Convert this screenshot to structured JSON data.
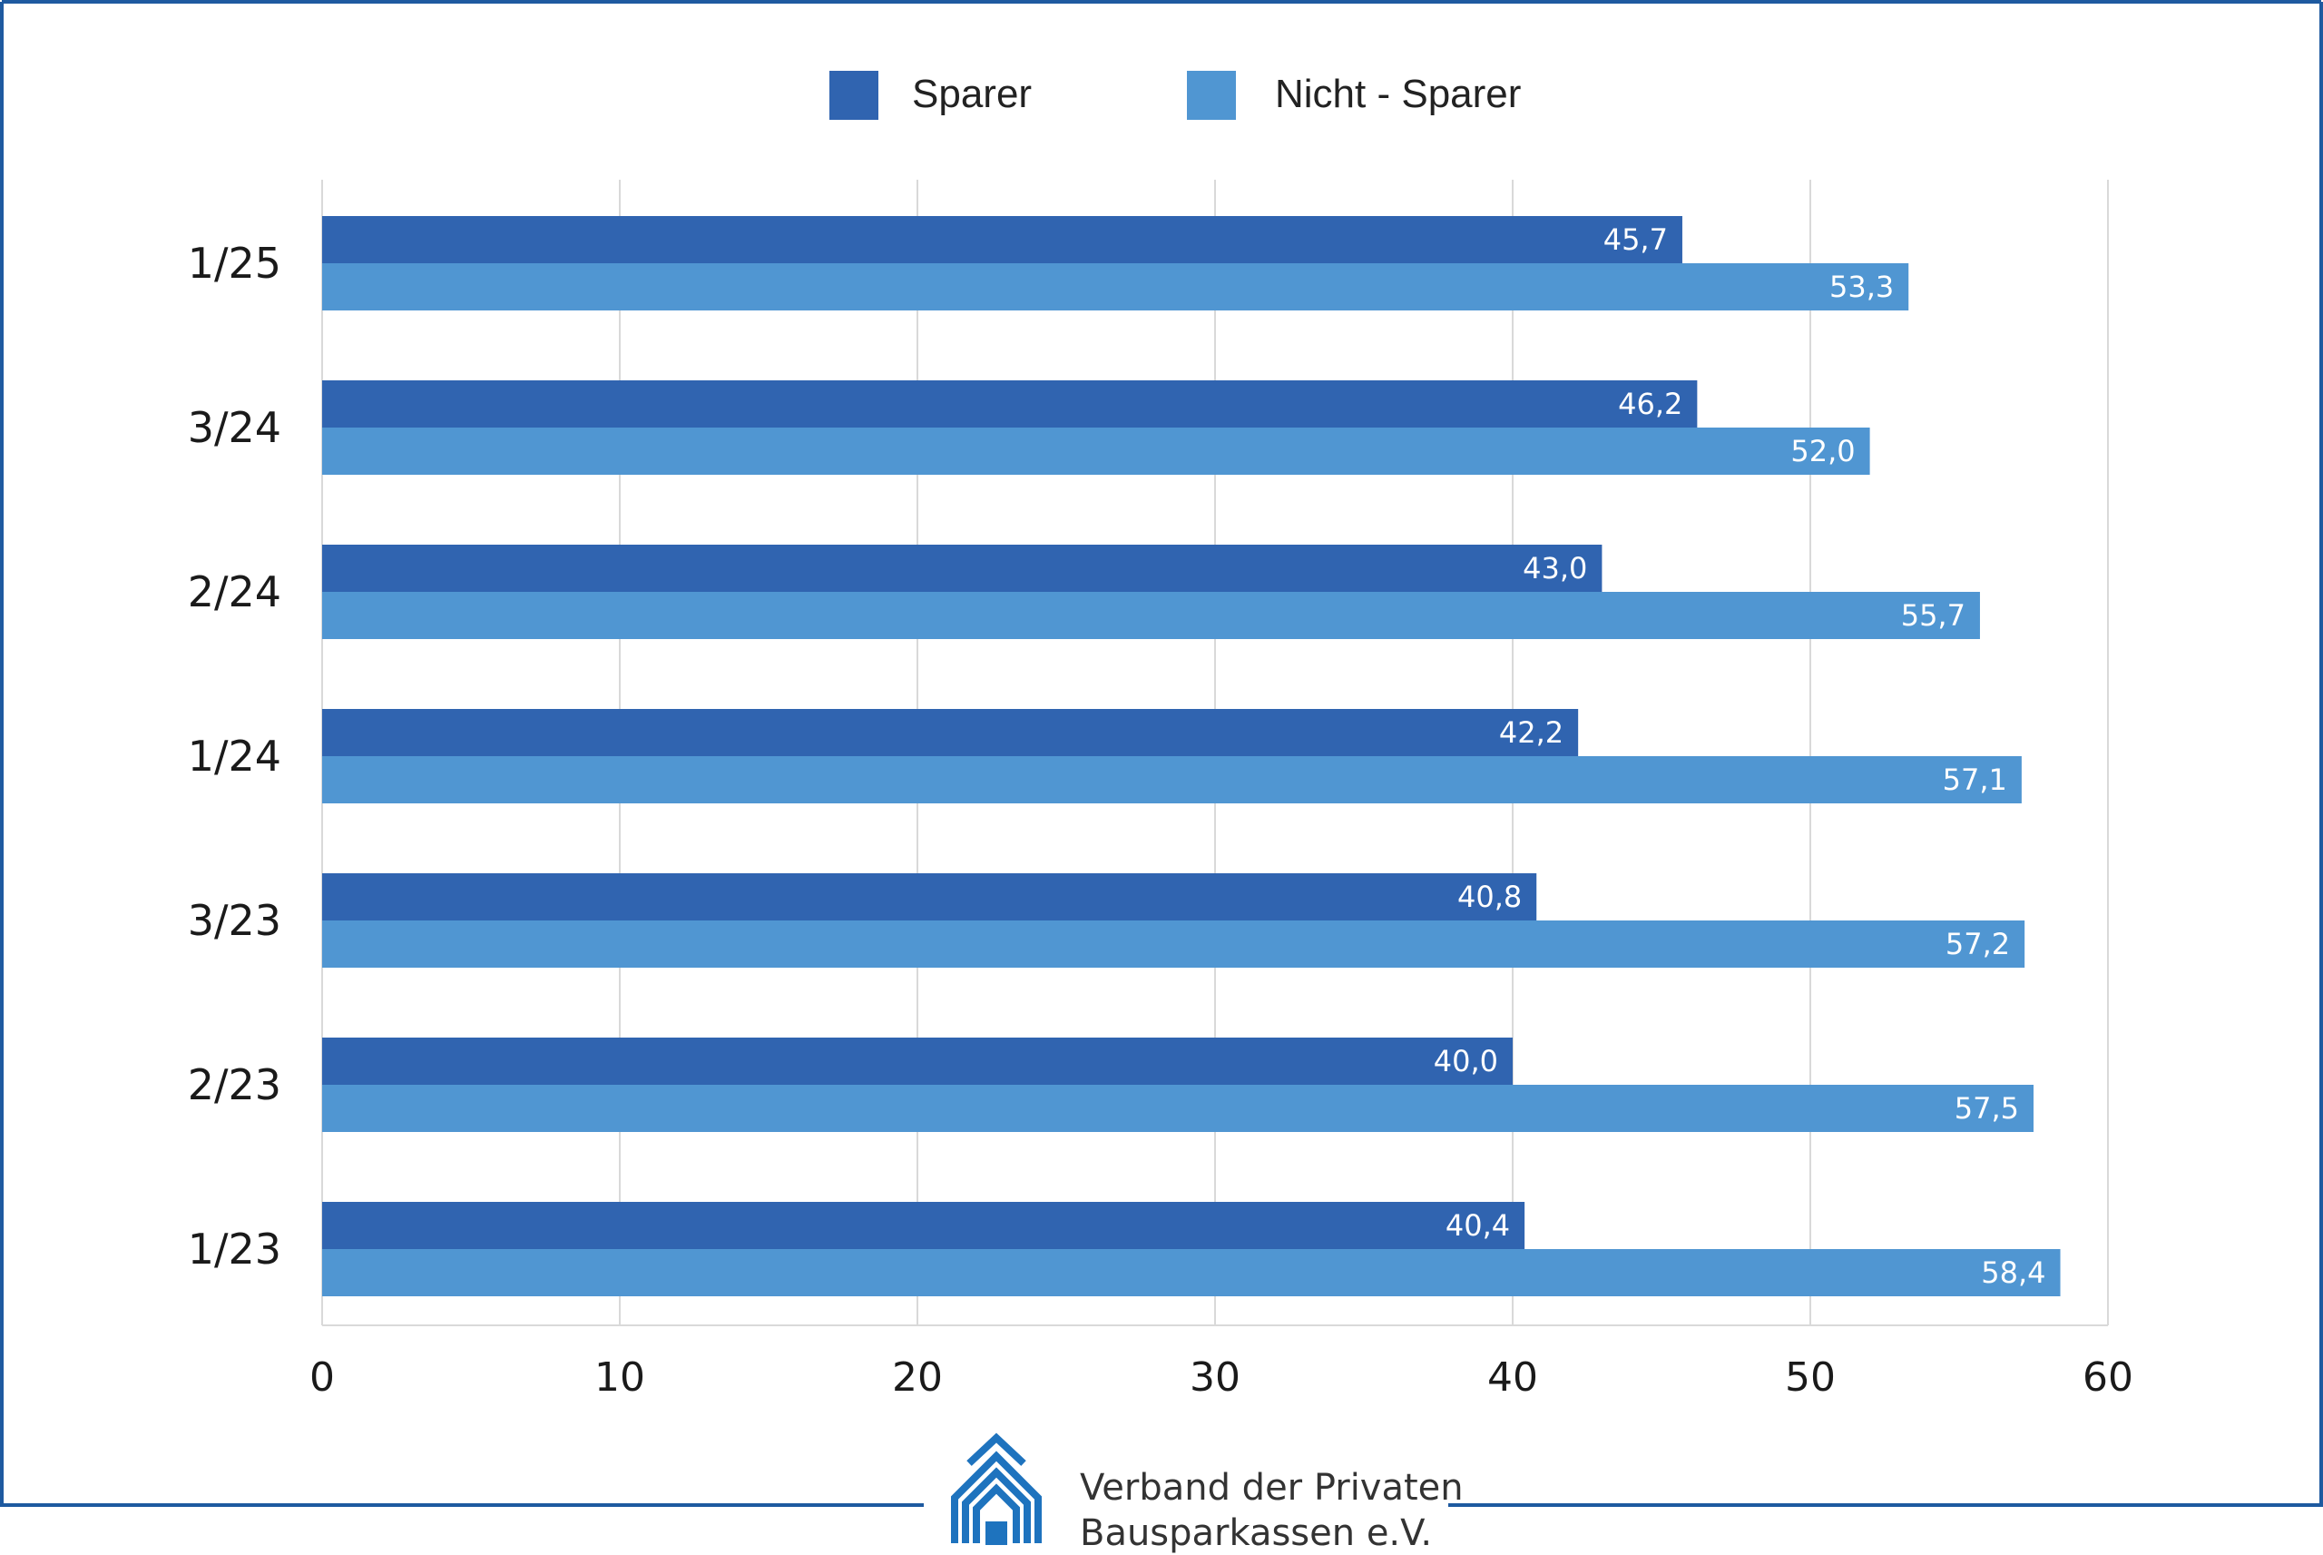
{
  "colors": {
    "frame": "#1e5aa0",
    "sparer": "#3064b0",
    "nicht_sparer": "#5096d2",
    "grid": "#d9d9d9",
    "logo": "#1e73be"
  },
  "legend": [
    {
      "label": "Sparer",
      "color": "#3064b0"
    },
    {
      "label": "Nicht - Sparer",
      "color": "#5096d2"
    }
  ],
  "logo": {
    "icon": "house-icon",
    "line1": "Verband der Privaten",
    "line2": "Bausparkassen e.V."
  },
  "chart_data": {
    "type": "bar",
    "orientation": "horizontal",
    "categories": [
      "1/25",
      "3/24",
      "2/24",
      "1/24",
      "3/23",
      "2/23",
      "1/23"
    ],
    "series": [
      {
        "name": "Sparer",
        "values": [
          45.7,
          46.2,
          43.0,
          42.2,
          40.8,
          40.0,
          40.4
        ],
        "labels": [
          "45,7",
          "46,2",
          "43,0",
          "42,2",
          "40,8",
          "40,0",
          "40,4"
        ]
      },
      {
        "name": "Nicht - Sparer",
        "values": [
          53.3,
          52.0,
          55.7,
          57.1,
          57.2,
          57.5,
          58.4
        ],
        "labels": [
          "53,3",
          "52,0",
          "55,7",
          "57,1",
          "57,2",
          "57,5",
          "58,4"
        ]
      }
    ],
    "xlim": [
      0,
      60
    ],
    "xticks": [
      0,
      10,
      20,
      30,
      40,
      50,
      60
    ],
    "xtick_labels": [
      "0",
      "10",
      "20",
      "30",
      "40",
      "50",
      "60"
    ],
    "grid": true,
    "legend_position": "top"
  }
}
